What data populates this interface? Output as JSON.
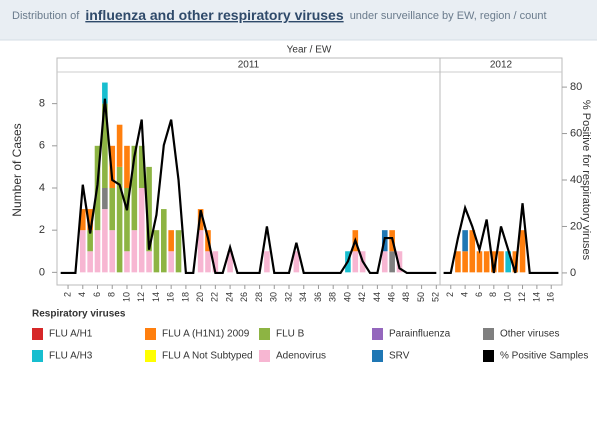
{
  "chart_data": {
    "type": "bar",
    "title_prefix": "Distribution of",
    "title_link": "influenza and other respiratory viruses",
    "title_suffix": "under surveillance by EW, region / count",
    "x_label": "Year  /  EW",
    "y_label": "Number of Cases",
    "y2_label": "% Positive for respiratory viruses",
    "ylim": [
      -0.6,
      9.5
    ],
    "yticks": [
      0,
      2,
      4,
      6,
      8
    ],
    "y2lim": [
      -5.2,
      86.5
    ],
    "y2ticks": [
      0,
      20,
      40,
      60,
      80
    ],
    "legend_title": "Respiratory viruses",
    "series": [
      {
        "name": "FLU A/H1",
        "color": "#d62728"
      },
      {
        "name": "FLU A (H1N1) 2009",
        "color": "#ff7f0e"
      },
      {
        "name": "FLU B",
        "color": "#8db443"
      },
      {
        "name": "Parainfluenza",
        "color": "#9467bd"
      },
      {
        "name": "Other viruses",
        "color": "#7f7f7f"
      },
      {
        "name": "FLU A/H3",
        "color": "#17becf"
      },
      {
        "name": "FLU A Not Subtyped",
        "color": "#ffff00"
      },
      {
        "name": "Adenovirus",
        "color": "#f7b6d2"
      },
      {
        "name": "SRV",
        "color": "#1f77b4"
      },
      {
        "name": "% Positive Samples",
        "color": "#000000",
        "type": "line",
        "axis": "y2"
      }
    ],
    "panels": [
      {
        "label": "2011",
        "x": [
          1,
          2,
          3,
          4,
          5,
          6,
          7,
          8,
          9,
          10,
          11,
          12,
          13,
          14,
          15,
          16,
          17,
          18,
          19,
          20,
          21,
          22,
          23,
          24,
          25,
          26,
          27,
          28,
          29,
          30,
          31,
          32,
          33,
          34,
          35,
          36,
          37,
          38,
          39,
          40,
          41,
          42,
          43,
          44,
          45,
          46,
          47,
          48,
          49,
          50,
          51,
          52
        ],
        "xlim": [
          0.5,
          52.5
        ],
        "xticks": [
          2,
          4,
          6,
          8,
          10,
          12,
          14,
          16,
          18,
          20,
          22,
          24,
          26,
          28,
          30,
          32,
          34,
          36,
          38,
          40,
          42,
          44,
          46,
          48,
          50,
          52
        ],
        "values": [
          [
            0,
            0,
            0,
            0,
            0,
            0,
            0,
            0,
            0,
            0,
            0,
            0,
            0,
            0,
            0,
            0,
            0,
            0,
            0,
            0,
            0,
            0,
            0,
            0,
            0,
            0,
            0,
            0,
            0,
            0,
            0,
            0,
            0,
            0,
            0,
            0,
            0,
            0,
            0,
            0,
            0,
            0,
            0,
            0,
            0,
            0,
            0,
            0,
            0,
            0,
            0,
            0
          ],
          [
            0,
            0,
            0,
            1,
            1,
            0,
            0,
            2,
            2,
            2,
            0,
            0,
            0,
            0,
            0,
            1,
            0,
            0,
            0,
            1,
            1,
            0,
            0,
            0,
            0,
            0,
            0,
            0,
            0,
            0,
            0,
            0,
            0,
            0,
            0,
            0,
            0,
            0,
            0,
            0,
            1,
            0,
            0,
            0,
            0,
            1,
            0,
            0,
            0,
            0,
            0,
            0
          ],
          [
            0,
            0,
            0,
            0,
            1,
            4,
            4,
            2,
            5,
            3,
            4,
            2,
            4,
            2,
            3,
            0,
            2,
            0,
            0,
            0,
            0,
            0,
            0,
            0,
            0,
            0,
            0,
            0,
            0,
            0,
            0,
            0,
            0,
            0,
            0,
            0,
            0,
            0,
            0,
            0,
            0,
            0,
            0,
            0,
            0,
            0,
            0,
            0,
            0,
            0,
            0,
            0
          ],
          [
            0,
            0,
            0,
            0,
            0,
            0,
            0,
            0,
            0,
            0,
            0,
            0,
            0,
            0,
            0,
            0,
            0,
            0,
            0,
            0,
            0,
            0,
            0,
            0,
            0,
            0,
            0,
            0,
            0,
            0,
            0,
            0,
            0,
            0,
            0,
            0,
            0,
            0,
            0,
            0,
            0,
            0,
            0,
            0,
            0,
            0,
            0,
            0,
            0,
            0,
            0,
            0
          ],
          [
            0,
            0,
            0,
            0,
            0,
            0,
            1,
            0,
            0,
            0,
            0,
            0,
            0,
            0,
            0,
            0,
            0,
            0,
            0,
            0,
            0,
            0,
            0,
            0,
            0,
            0,
            0,
            0,
            0,
            0,
            0,
            0,
            0,
            0,
            0,
            0,
            0,
            0,
            0,
            0,
            0,
            0,
            0,
            0,
            0,
            1,
            0,
            0,
            0,
            0,
            0,
            0
          ],
          [
            0,
            0,
            0,
            0,
            0,
            0,
            1,
            0,
            0,
            0,
            0,
            0,
            0,
            0,
            0,
            0,
            0,
            0,
            0,
            0,
            0,
            0,
            0,
            0,
            0,
            0,
            0,
            0,
            0,
            0,
            0,
            0,
            0,
            0,
            0,
            0,
            0,
            0,
            0,
            1,
            0,
            0,
            0,
            0,
            0,
            0,
            0,
            0,
            0,
            0,
            0,
            0
          ],
          [
            0,
            0,
            0,
            0,
            0,
            0,
            0,
            0,
            0,
            0,
            0,
            0,
            0,
            0,
            0,
            0,
            0,
            0,
            0,
            0,
            0,
            0,
            0,
            0,
            0,
            0,
            0,
            0,
            0,
            0,
            0,
            0,
            0,
            0,
            0,
            0,
            0,
            0,
            0,
            0,
            0,
            0,
            0,
            0,
            0,
            0,
            0,
            0,
            0,
            0,
            0,
            0
          ],
          [
            0,
            0,
            0,
            2,
            1,
            2,
            3,
            2,
            0,
            1,
            2,
            4,
            1,
            0,
            0,
            1,
            0,
            0,
            0,
            2,
            1,
            1,
            0,
            1,
            0,
            0,
            0,
            0,
            1,
            0,
            0,
            0,
            1,
            0,
            0,
            0,
            0,
            0,
            0,
            0,
            1,
            1,
            0,
            0,
            1,
            0,
            1,
            0,
            0,
            0,
            0,
            0
          ],
          [
            0,
            0,
            0,
            0,
            0,
            0,
            0,
            0,
            0,
            0,
            0,
            0,
            0,
            0,
            0,
            0,
            0,
            0,
            0,
            0,
            0,
            0,
            0,
            0,
            0,
            0,
            0,
            0,
            0,
            0,
            0,
            0,
            0,
            0,
            0,
            0,
            0,
            0,
            0,
            0,
            0,
            0,
            0,
            0,
            1,
            0,
            0,
            0,
            0,
            0,
            0,
            0
          ],
          [
            0,
            0,
            0,
            38,
            17,
            38,
            75,
            40,
            38,
            27,
            50,
            66,
            10,
            25,
            55,
            66,
            40,
            0,
            0,
            27,
            15,
            0,
            0,
            11,
            0,
            0,
            0,
            0,
            20,
            0,
            0,
            0,
            13,
            0,
            0,
            0,
            0,
            0,
            0,
            5,
            14,
            5,
            0,
            0,
            15,
            15,
            2,
            0,
            0,
            0,
            0,
            0
          ]
        ]
      },
      {
        "label": "2012",
        "x": [
          1,
          2,
          3,
          4,
          5,
          6,
          7,
          8,
          9,
          10,
          11,
          12,
          13,
          14,
          15,
          16,
          17
        ],
        "xlim": [
          0.5,
          17.5
        ],
        "xticks": [
          2,
          4,
          6,
          8,
          10,
          12,
          14,
          16
        ],
        "values": [
          [
            0,
            0,
            0,
            0,
            0,
            0,
            0,
            0,
            0,
            0,
            0,
            0,
            0,
            0,
            0,
            0,
            0
          ],
          [
            0,
            0,
            1,
            1,
            2,
            1,
            1,
            1,
            1,
            0,
            1,
            2,
            0,
            0,
            0,
            0,
            0
          ],
          [
            0,
            0,
            0,
            0,
            0,
            0,
            0,
            0,
            0,
            0,
            0,
            0,
            0,
            0,
            0,
            0,
            0
          ],
          [
            0,
            0,
            0,
            0,
            0,
            0,
            0,
            0,
            0,
            0,
            0,
            0,
            0,
            0,
            0,
            0,
            0
          ],
          [
            0,
            0,
            0,
            0,
            0,
            0,
            0,
            0,
            0,
            0,
            0,
            0,
            0,
            0,
            0,
            0,
            0
          ],
          [
            0,
            0,
            0,
            0,
            0,
            0,
            0,
            0,
            0,
            1,
            0,
            0,
            0,
            0,
            0,
            0,
            0
          ],
          [
            0,
            0,
            0,
            0,
            0,
            0,
            0,
            0,
            0,
            0,
            0,
            0,
            0,
            0,
            0,
            0,
            0
          ],
          [
            0,
            0,
            0,
            0,
            0,
            0,
            0,
            0,
            0,
            0,
            0,
            0,
            0,
            0,
            0,
            0,
            0
          ],
          [
            0,
            0,
            0,
            1,
            0,
            0,
            0,
            0,
            0,
            0,
            0,
            0,
            0,
            0,
            0,
            0,
            0
          ],
          [
            0,
            0,
            15,
            28,
            20,
            10,
            23,
            0,
            20,
            10,
            0,
            30,
            0,
            0,
            0,
            0,
            0
          ]
        ]
      }
    ]
  }
}
